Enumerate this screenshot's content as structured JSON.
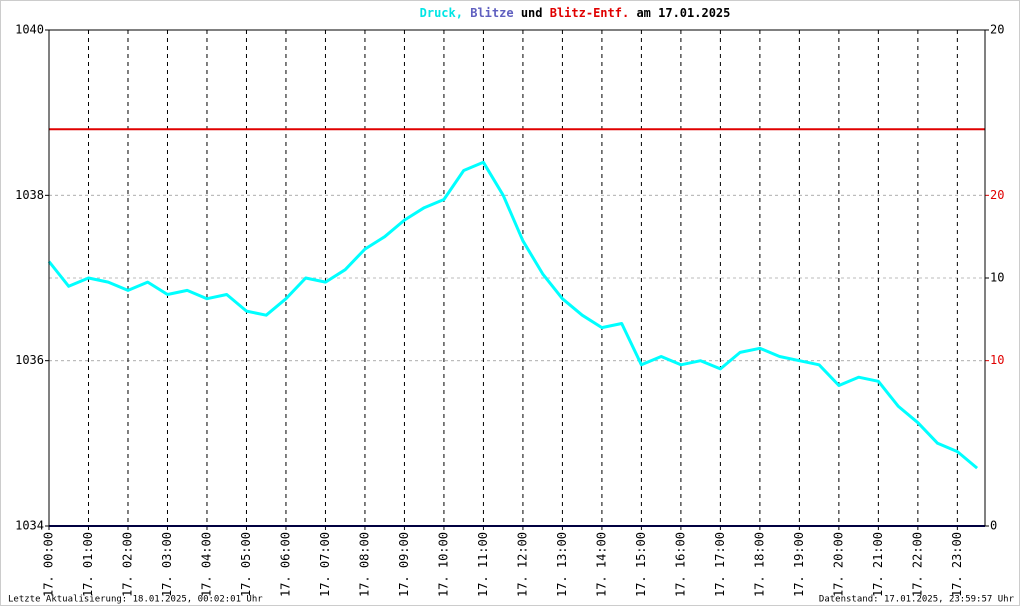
{
  "chart_data": {
    "type": "line",
    "title_parts": [
      {
        "text": "Druck,",
        "color": "#00e5e5"
      },
      {
        "text": "Blitze",
        "color": "#6060c0"
      },
      {
        "text": "und",
        "color": "#000000"
      },
      {
        "text": "Blitz-Entf.",
        "color": "#e00000"
      },
      {
        "text": "am 17.01.2025",
        "color": "#000000"
      }
    ],
    "xlim": [
      0,
      23.7
    ],
    "xticks": [
      {
        "value": 0,
        "label": "17. 00:00"
      },
      {
        "value": 1,
        "label": "17. 01:00"
      },
      {
        "value": 2,
        "label": "17. 02:00"
      },
      {
        "value": 3,
        "label": "17. 03:00"
      },
      {
        "value": 4,
        "label": "17. 04:00"
      },
      {
        "value": 5,
        "label": "17. 05:00"
      },
      {
        "value": 6,
        "label": "17. 06:00"
      },
      {
        "value": 7,
        "label": "17. 07:00"
      },
      {
        "value": 8,
        "label": "17. 08:00"
      },
      {
        "value": 9,
        "label": "17. 09:00"
      },
      {
        "value": 10,
        "label": "17. 10:00"
      },
      {
        "value": 11,
        "label": "17. 11:00"
      },
      {
        "value": 12,
        "label": "17. 12:00"
      },
      {
        "value": 13,
        "label": "17. 13:00"
      },
      {
        "value": 14,
        "label": "17. 14:00"
      },
      {
        "value": 15,
        "label": "17. 15:00"
      },
      {
        "value": 16,
        "label": "17. 16:00"
      },
      {
        "value": 17,
        "label": "17. 17:00"
      },
      {
        "value": 18,
        "label": "17. 18:00"
      },
      {
        "value": 19,
        "label": "17. 19:00"
      },
      {
        "value": 20,
        "label": "17. 20:00"
      },
      {
        "value": 21,
        "label": "17. 21:00"
      },
      {
        "value": 22,
        "label": "17. 22:00"
      },
      {
        "value": 23,
        "label": "17. 23:00"
      }
    ],
    "ylim": [
      1034,
      1040
    ],
    "yticks": [
      1034,
      1036,
      1038,
      1040
    ],
    "y2lim": [
      0,
      20
    ],
    "y2ticks": [
      0,
      10,
      20
    ],
    "y3lim": [
      0,
      30
    ],
    "y3ticks": [
      10,
      20
    ],
    "y3color": "#e00000",
    "series": [
      {
        "color": "#00ffff",
        "x": [
          0,
          0.5,
          1,
          1.5,
          2,
          2.5,
          3,
          3.5,
          4,
          4.5,
          5,
          5.5,
          6,
          6.5,
          7,
          7.5,
          8,
          8.5,
          9,
          9.5,
          10,
          10.5,
          11,
          11.5,
          12,
          12.5,
          13,
          13.5,
          14,
          14.5,
          15,
          15.5,
          16,
          16.5,
          17,
          17.5,
          18,
          18.5,
          19,
          19.5,
          20,
          20.5,
          21,
          21.5,
          22,
          22.5,
          23,
          23.5
        ],
        "values": [
          1037.2,
          1036.9,
          1037.0,
          1036.95,
          1036.85,
          1036.95,
          1036.8,
          1036.85,
          1036.75,
          1036.8,
          1036.6,
          1036.55,
          1036.75,
          1037.0,
          1036.95,
          1037.1,
          1037.35,
          1037.5,
          1037.7,
          1037.85,
          1037.95,
          1038.3,
          1038.4,
          1038.0,
          1037.45,
          1037.05,
          1036.75,
          1036.55,
          1036.4,
          1036.45,
          1035.95,
          1036.05,
          1035.95,
          1036.0,
          1035.9,
          1036.1,
          1036.15,
          1036.05,
          1036.0,
          1035.95,
          1035.7,
          1035.8,
          1035.75,
          1035.45,
          1035.25,
          1035.0,
          1034.9,
          1034.7
        ]
      },
      {
        "color": "#000080",
        "axis": "y2",
        "values": [
          0
        ]
      },
      {
        "color": "#e00000",
        "axis": "y3",
        "values": [
          24
        ]
      }
    ],
    "footer_left": "Letzte Aktualisierung: 18.01.2025, 00:02:01 Uhr",
    "footer_right": "Datenstand: 17.01.2025, 23:59:57 Uhr"
  }
}
